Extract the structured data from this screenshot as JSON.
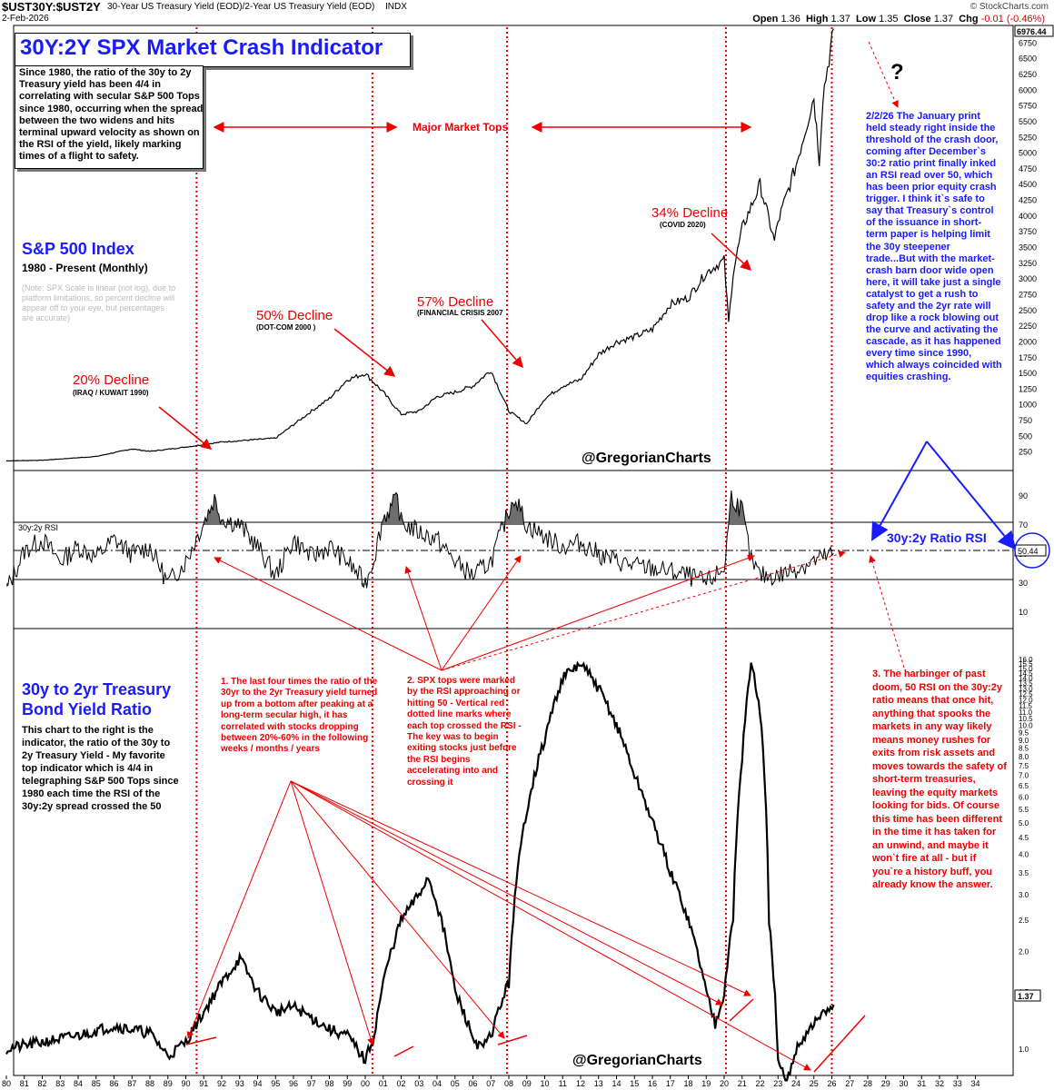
{
  "header": {
    "symbol": "$UST30Y:$UST2Y",
    "description": "30-Year US Treasury Yield (EOD)/2-Year US Treasury Yield (EOD)",
    "exchange": "INDX",
    "date": "2-Feb-2026",
    "brand": "© StockCharts.com",
    "open_label": "Open",
    "open": "1.36",
    "high_label": "High",
    "high": "1.37",
    "low_label": "Low",
    "low": "1.35",
    "close_label": "Close",
    "close": "1.37",
    "chg_label": "Chg",
    "chg": "-0.01 (-0.46%)"
  },
  "title": "30Y:2Y SPX Market Crash Indicator",
  "intro_note": "Since 1980, the ratio of the 30y to 2y Treasury yield has been 4/4 in correlating with secular S&P 500 Tops since 1980, occurring when the spread between the two widens and hits terminal upward velocity as shown on the RSI of the yield, likely marking times of a flight to safety.",
  "spx_panel": {
    "heading": "S&P 500 Index",
    "subheading": "1980 - Present (Monthly)",
    "scale_note": "(Note: SPX Scale is linear (not log), due to platform limitations, so percent decline will appear off to your eye, but percentages are accurate)",
    "major_tops_label": "Major Market Tops",
    "question_mark": "?",
    "watermark": "@GregorianCharts",
    "last_value_label": "6976.44",
    "declines": [
      {
        "pct": "20% Decline",
        "event": "(IRAQ / KUWAIT 1990)"
      },
      {
        "pct": "50% Decline",
        "event": "(DOT-COM 2000 )"
      },
      {
        "pct": "57% Decline",
        "event": "(FINANCIAL CRISIS 2007"
      },
      {
        "pct": "34% Decline",
        "event": "(COVID 2020)"
      }
    ],
    "commentary": "2/2/26 The January print held steady right inside the threshold of the crash door, coming after December`s 30:2 ratio print finally inked an RSI read over 50, which has been prior equity crash trigger. I think it`s safe to say that Treasury`s control of the issuance in short-term paper is helping limit the 30y steepener trade...But with the market-crash barn door wide open here, it will take just a single catalyst to get a rush to safety and the 2yr rate will drop like a rock blowing out the curve and activating the cascade, as it has happened every time since 1990, which always coincided with equities crashing.",
    "y_ticks": [
      "6750",
      "6500",
      "6250",
      "6000",
      "5750",
      "5500",
      "5250",
      "5000",
      "4750",
      "4500",
      "4250",
      "4000",
      "3750",
      "3500",
      "3250",
      "3000",
      "2750",
      "2500",
      "2250",
      "2000",
      "1750",
      "1500",
      "1250",
      "1000",
      "750",
      "500",
      "250"
    ]
  },
  "rsi_panel": {
    "label": "30y:2y RSI",
    "ratio_label": "30y:2y Ratio RSI",
    "last_value_label": "50.44",
    "y_ticks": [
      "90",
      "70",
      "50",
      "30",
      "10"
    ]
  },
  "ratio_panel": {
    "heading": "30y to 2yr Treasury Bond Yield Ratio",
    "description": "This chart to the right is the indicator, the ratio of the 30y to 2y Treasury Yield - My favorite top indicator which is 4/4 in telegraphing S&P 500 Tops since 1980 each time the RSI of the 30y:2y spread crossed the 50",
    "note1": "1. The last four times the ratio of the 30yr to the 2yr Treasury yield turned up from a bottom after peaking at a long-term secular high, it has correlated with stocks dropping between 20%-60% in the following weeks / months / years",
    "note2": "2. SPX tops were marked by the RSI approaching or hitting 50 - Vertical red dotted line marks where each top crossed the RSI - The key was to begin exiting stocks just before the RSI begins accelerating into and crossing it",
    "note3": "3. The harbinger of past doom, 50 RSI on the 30y:2y ratio means that once hit, anything that spooks the markets in any way likely means money rushes for exits from risk assets and moves towards the safety of short-term treasuries, leaving the equity markets looking for bids. Of course this time has been different in the time it has taken for an unwind, and maybe it won`t fire at all - but if you`re a history buff, you already know the answer.",
    "watermark": "@GregorianCharts",
    "last_value_label": "1.37",
    "y_ticks": [
      "16.0",
      "15.5",
      "15.0",
      "14.5",
      "14.0",
      "13.5",
      "13.0",
      "12.5",
      "12.0",
      "11.5",
      "11.0",
      "10.5",
      "10.0",
      "9.5",
      "9.0",
      "8.5",
      "8.0",
      "7.5",
      "7.0",
      "6.5",
      "6.0",
      "5.5",
      "5.0",
      "4.5",
      "4.0",
      "3.5",
      "3.0",
      "2.5",
      "2.0",
      "1.5",
      "1.0"
    ]
  },
  "x_axis": [
    "80",
    "81",
    "82",
    "83",
    "84",
    "85",
    "86",
    "87",
    "88",
    "89",
    "90",
    "91",
    "92",
    "93",
    "94",
    "95",
    "96",
    "97",
    "98",
    "99",
    "00",
    "01",
    "02",
    "03",
    "04",
    "05",
    "06",
    "07",
    "08",
    "09",
    "10",
    "11",
    "12",
    "13",
    "14",
    "15",
    "16",
    "17",
    "18",
    "19",
    "20",
    "21",
    "22",
    "23",
    "24",
    "25",
    "26",
    "27",
    "28",
    "29",
    "30",
    "31",
    "32",
    "33",
    "34"
  ],
  "colors": {
    "accent_blue": "#1a1aff",
    "accent_red": "#e00000",
    "rsi_fill": "#6e6e6e"
  },
  "chart_data": [
    {
      "type": "line",
      "name": "S&P 500 Index",
      "scale": "linear",
      "ylim": [
        0,
        7000
      ],
      "x": [
        1980,
        1982,
        1985,
        1987,
        1988,
        1990,
        1992,
        1995,
        1997,
        1998,
        1999,
        2000,
        2001,
        2002,
        2003,
        2004,
        2005,
        2006,
        2007,
        2008,
        2009,
        2010,
        2011,
        2012,
        2013,
        2014,
        2015,
        2016,
        2017,
        2018,
        2019,
        2020,
        2020.25,
        2020.5,
        2021,
        2022,
        2022.8,
        2023,
        2024,
        2025,
        2025.3,
        2025.5,
        2026.1
      ],
      "values": [
        110,
        120,
        180,
        300,
        260,
        330,
        410,
        470,
        900,
        1100,
        1400,
        1500,
        1200,
        850,
        900,
        1130,
        1200,
        1300,
        1550,
        900,
        700,
        1100,
        1300,
        1400,
        1800,
        2000,
        2080,
        2200,
        2600,
        2700,
        3100,
        3300,
        2300,
        3100,
        3800,
        4500,
        3600,
        3900,
        4800,
        5900,
        4900,
        5900,
        6976
      ]
    },
    {
      "type": "line",
      "name": "30y:2y RSI",
      "ylim": [
        0,
        100
      ],
      "x": [
        1980,
        1981,
        1982,
        1983,
        1984,
        1985,
        1986,
        1987,
        1988,
        1989,
        1990,
        1991,
        1991.6,
        1992,
        1993,
        1994,
        1995,
        1996,
        1997,
        1998,
        1999,
        2000,
        2000.5,
        2001,
        2001.8,
        2002,
        2003,
        2004,
        2005,
        2006,
        2007,
        2008,
        2008.3,
        2009,
        2010,
        2011,
        2012,
        2013,
        2014,
        2015,
        2016,
        2017,
        2018,
        2019,
        2020,
        2020.4,
        2021,
        2021.5,
        2022,
        2023,
        2024,
        2025,
        2026.1
      ],
      "values": [
        25,
        52,
        60,
        45,
        55,
        48,
        60,
        50,
        55,
        30,
        45,
        72,
        88,
        75,
        70,
        55,
        35,
        60,
        48,
        55,
        45,
        30,
        48,
        75,
        88,
        72,
        65,
        60,
        45,
        35,
        45,
        80,
        90,
        70,
        62,
        55,
        58,
        50,
        45,
        42,
        40,
        38,
        35,
        30,
        40,
        90,
        80,
        45,
        35,
        35,
        40,
        45,
        50.44
      ]
    },
    {
      "type": "line",
      "name": "30y to 2yr Treasury Bond Yield Ratio",
      "ylim": [
        0.8,
        18.9
      ],
      "x": [
        1980,
        1982,
        1984,
        1986,
        1988,
        1989,
        1990,
        1991,
        1992,
        1993,
        1994,
        1995,
        1996,
        1998,
        1999,
        2000,
        2000.5,
        2001,
        2002,
        2003,
        2003.5,
        2004,
        2005,
        2006,
        2006.5,
        2007,
        2008,
        2009,
        2010,
        2011,
        2012,
        2013,
        2014,
        2015,
        2016,
        2017,
        2018,
        2019,
        2019.5,
        2020,
        2020.5,
        2021,
        2021.5,
        2022,
        2022.5,
        2023,
        2023.5,
        2024,
        2025,
        2026.1
      ],
      "values": [
        1.0,
        1.05,
        1.1,
        1.18,
        1.12,
        0.95,
        1.05,
        1.3,
        1.6,
        1.9,
        1.5,
        1.3,
        1.35,
        1.15,
        1.1,
        0.92,
        1.1,
        1.6,
        2.5,
        3.0,
        3.4,
        2.8,
        1.5,
        1.08,
        1.0,
        1.1,
        1.6,
        5.5,
        9.0,
        14.0,
        15.5,
        13.0,
        10.0,
        7.0,
        5.0,
        3.5,
        2.5,
        1.5,
        1.2,
        1.5,
        2.5,
        8.0,
        15.5,
        11.0,
        2.5,
        0.9,
        0.78,
        1.0,
        1.2,
        1.37
      ]
    }
  ]
}
